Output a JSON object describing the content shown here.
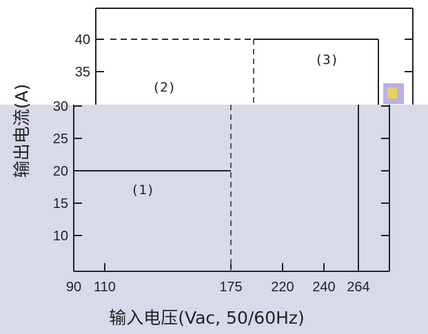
{
  "chart_data": [
    {
      "type": "line",
      "panel": "upper",
      "title": "",
      "xlabel": "",
      "ylabel": "",
      "yticks": [
        35,
        40
      ],
      "series": [
        {
          "role": "boundary-dashed-horizontal",
          "x": [
            110,
            200
          ],
          "y": [
            40,
            40
          ],
          "style": "dashed"
        },
        {
          "role": "boundary-dashed-vertical",
          "x": [
            200,
            200
          ],
          "y": [
            28,
            40
          ],
          "style": "dashed"
        },
        {
          "role": "boundary-solid-horizontal",
          "x": [
            200,
            264
          ],
          "y": [
            40,
            40
          ],
          "style": "solid"
        },
        {
          "role": "boundary-solid-vertical",
          "x": [
            264,
            264
          ],
          "y": [
            28,
            40
          ],
          "style": "solid"
        }
      ],
      "annotations": [
        {
          "text": "(2)",
          "x": 135,
          "y": 33
        },
        {
          "text": "(3)",
          "x": 232,
          "y": 37
        }
      ]
    },
    {
      "type": "line",
      "panel": "lower",
      "title": "",
      "xlabel": "输入电压(Vac, 50/60Hz)",
      "ylabel": "输出电流(A)",
      "xticks": [
        90,
        110,
        175,
        220,
        240,
        264
      ],
      "yticks": [
        10,
        15,
        20,
        25,
        30
      ],
      "xlim": [
        90,
        264
      ],
      "ylim": [
        5,
        30
      ],
      "series": [
        {
          "role": "boundary-solid-horizontal",
          "x": [
            90,
            175
          ],
          "y": [
            20,
            20
          ],
          "style": "solid"
        },
        {
          "role": "boundary-dashed-vertical",
          "x": [
            175,
            175
          ],
          "y": [
            5,
            30
          ],
          "style": "dashed"
        },
        {
          "role": "boundary-solid-vertical",
          "x": [
            264,
            264
          ],
          "y": [
            5,
            30
          ],
          "style": "solid"
        }
      ],
      "annotations": [
        {
          "text": "(1)",
          "x": 126,
          "y": 17
        }
      ]
    }
  ]
}
